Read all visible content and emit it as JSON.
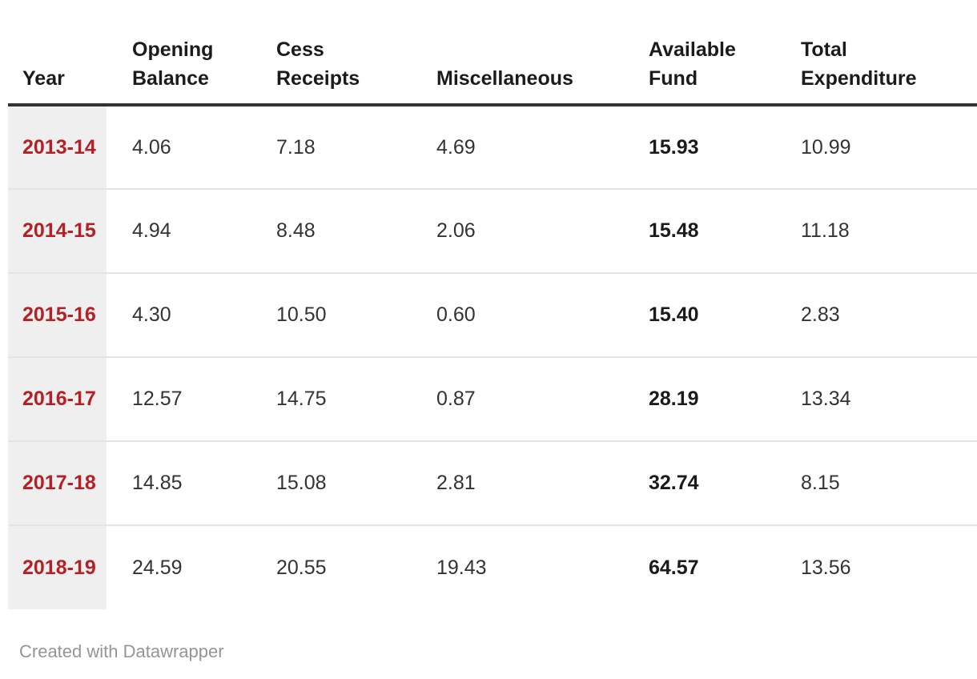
{
  "table": {
    "columns": [
      "Year",
      "Opening Balance",
      "Cess Receipts",
      "Miscellaneous",
      "Available Fund",
      "Total Expenditure"
    ],
    "rows": [
      {
        "year": "2013-14",
        "values": [
          "4.06",
          "7.18",
          "4.69",
          "15.93",
          "10.99"
        ]
      },
      {
        "year": "2014-15",
        "values": [
          "4.94",
          "8.48",
          "2.06",
          "15.48",
          "11.18"
        ]
      },
      {
        "year": "2015-16",
        "values": [
          "4.30",
          "10.50",
          "0.60",
          "15.40",
          "2.83"
        ]
      },
      {
        "year": "2016-17",
        "values": [
          "12.57",
          "14.75",
          "0.87",
          "28.19",
          "13.34"
        ]
      },
      {
        "year": "2017-18",
        "values": [
          "14.85",
          "15.08",
          "2.81",
          "32.74",
          "8.15"
        ]
      },
      {
        "year": "2018-19",
        "values": [
          "24.59",
          "20.55",
          "19.43",
          "64.57",
          "13.56"
        ]
      }
    ]
  },
  "footer": {
    "attribution": "Created with Datawrapper"
  },
  "colors": {
    "year_text": "#b32025",
    "year_cell_background": "#efefef",
    "header_border": "#333333",
    "row_separator": "#e4e4e4",
    "body_text": "#333333",
    "footer_text": "#959595"
  },
  "chart_data": {
    "type": "table",
    "title": "",
    "categories": [
      "2013-14",
      "2014-15",
      "2015-16",
      "2016-17",
      "2017-18",
      "2018-19"
    ],
    "series": [
      {
        "name": "Opening Balance",
        "values": [
          4.06,
          4.94,
          4.3,
          12.57,
          14.85,
          24.59
        ]
      },
      {
        "name": "Cess Receipts",
        "values": [
          7.18,
          8.48,
          10.5,
          14.75,
          15.08,
          20.55
        ]
      },
      {
        "name": "Miscellaneous",
        "values": [
          4.69,
          2.06,
          0.6,
          0.87,
          2.81,
          19.43
        ]
      },
      {
        "name": "Available Fund",
        "values": [
          15.93,
          15.48,
          15.4,
          28.19,
          32.74,
          64.57
        ]
      },
      {
        "name": "Total Expenditure",
        "values": [
          10.99,
          11.18,
          2.83,
          13.34,
          8.15,
          13.56
        ]
      }
    ],
    "layout_hints": {
      "first_column_highlighted": true,
      "bold_column": "Available Fund",
      "attribution": "Created with Datawrapper"
    }
  }
}
